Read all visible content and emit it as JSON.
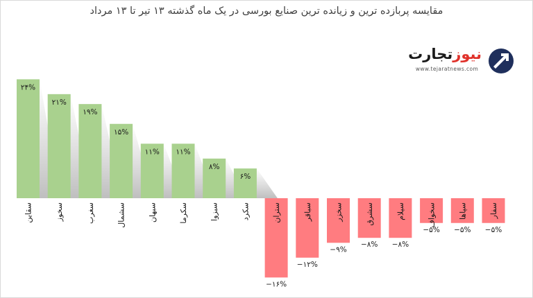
{
  "chart_data": {
    "type": "bar",
    "title": "مقایسه پربازده ترین و زیانده ترین صنایع بورسی در  یک ماه گذشته ۱۳ تیر تا ۱۳ مرداد",
    "categories": [
      "سقاین",
      "سخوز",
      "سغرب",
      "سشمال",
      "سبهان",
      "سکرما",
      "سبزوا",
      "سکرد",
      "ستران",
      "سباقر",
      "سخزر",
      "سشرق",
      "سیلام",
      "سخواف",
      "سپاها",
      "سفار"
    ],
    "values": [
      24,
      21,
      19,
      15,
      11,
      11,
      8,
      6,
      -16,
      -12,
      -9,
      -8,
      -8,
      -5,
      -5,
      -5
    ],
    "value_labels": [
      "۲۴%",
      "۲۱%",
      "۱۹%",
      "۱۵%",
      "۱۱%",
      "۱۱%",
      "۸%",
      "۶%",
      "−۱۶%",
      "−۱۲%",
      "−۹%",
      "−۸%",
      "−۸%",
      "−۵%",
      "−۵%",
      "−۵%"
    ],
    "colors": {
      "positive": "#a9d18e",
      "negative": "#ff7c80"
    },
    "grid": false,
    "legend": "none"
  },
  "logo": {
    "word_part1": "تجارت",
    "word_part2": "نیوز",
    "url": "www.tejaratnews.com",
    "mark_icon": "tejaratnews-arrow-icon"
  }
}
